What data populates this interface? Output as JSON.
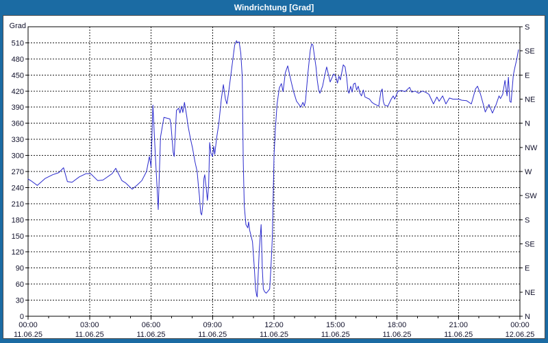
{
  "window": {
    "title": "Windrichtung [Grad]"
  },
  "colors": {
    "frame_blue": "#1b6ba3",
    "title_text": "#ffffff",
    "panel_bg": "#ffffff",
    "axis": "#000000",
    "grid": "#1a1a1a",
    "tick_text": "#10102a",
    "series_line": "#2828cc"
  },
  "chart_data": {
    "type": "line",
    "title": "Windrichtung [Grad]",
    "grid": true,
    "y_left": {
      "label": "Grad",
      "min": 0,
      "max": 540,
      "tick_step": 30,
      "ticks": [
        0,
        30,
        60,
        90,
        120,
        150,
        180,
        210,
        240,
        270,
        300,
        330,
        360,
        390,
        420,
        450,
        480,
        510
      ]
    },
    "y_right": {
      "labels": [
        {
          "value": 540,
          "label": "S"
        },
        {
          "value": 495,
          "label": "SE"
        },
        {
          "value": 450,
          "label": "E"
        },
        {
          "value": 405,
          "label": "NE"
        },
        {
          "value": 360,
          "label": "N"
        },
        {
          "value": 315,
          "label": "NW"
        },
        {
          "value": 270,
          "label": "W"
        },
        {
          "value": 225,
          "label": "SW"
        },
        {
          "value": 180,
          "label": "S"
        },
        {
          "value": 135,
          "label": "SE"
        },
        {
          "value": 90,
          "label": "E"
        },
        {
          "value": 45,
          "label": "NE"
        },
        {
          "value": 0,
          "label": "N"
        }
      ]
    },
    "x": {
      "min_hour": 0,
      "max_hour": 24,
      "minor_tick_hours": 1,
      "ticks": [
        {
          "hour": 0,
          "time": "00:00",
          "date": "11.06.25"
        },
        {
          "hour": 3,
          "time": "03:00",
          "date": "11.06.25"
        },
        {
          "hour": 6,
          "time": "06:00",
          "date": "11.06.25"
        },
        {
          "hour": 9,
          "time": "09:00",
          "date": "11.06.25"
        },
        {
          "hour": 12,
          "time": "12:00",
          "date": "11.06.25"
        },
        {
          "hour": 15,
          "time": "15:00",
          "date": "11.06.25"
        },
        {
          "hour": 18,
          "time": "18:00",
          "date": "11.06.25"
        },
        {
          "hour": 21,
          "time": "21:00",
          "date": "11.06.25"
        },
        {
          "hour": 24,
          "time": "00:00",
          "date": "12.06.25"
        }
      ]
    },
    "series": [
      {
        "name": "Windrichtung",
        "unit": "Grad",
        "points": [
          [
            0.0,
            256
          ],
          [
            0.17,
            252
          ],
          [
            0.45,
            244
          ],
          [
            0.83,
            257
          ],
          [
            1.2,
            264
          ],
          [
            1.5,
            268
          ],
          [
            1.73,
            277
          ],
          [
            1.92,
            251
          ],
          [
            2.15,
            250
          ],
          [
            2.5,
            260
          ],
          [
            2.83,
            266
          ],
          [
            3.05,
            266
          ],
          [
            3.4,
            253
          ],
          [
            3.65,
            254
          ],
          [
            4.1,
            266
          ],
          [
            4.28,
            276
          ],
          [
            4.58,
            253
          ],
          [
            4.75,
            249
          ],
          [
            5.08,
            237
          ],
          [
            5.33,
            245
          ],
          [
            5.55,
            253
          ],
          [
            5.78,
            270
          ],
          [
            5.92,
            298
          ],
          [
            6.0,
            279
          ],
          [
            6.09,
            394
          ],
          [
            6.21,
            300
          ],
          [
            6.35,
            199
          ],
          [
            6.46,
            334
          ],
          [
            6.63,
            371
          ],
          [
            6.92,
            368
          ],
          [
            6.97,
            358
          ],
          [
            7.08,
            306
          ],
          [
            7.13,
            298
          ],
          [
            7.24,
            384
          ],
          [
            7.35,
            388
          ],
          [
            7.41,
            379
          ],
          [
            7.49,
            392
          ],
          [
            7.55,
            380
          ],
          [
            7.63,
            399
          ],
          [
            7.74,
            373
          ],
          [
            7.8,
            356
          ],
          [
            7.92,
            332
          ],
          [
            8.03,
            313
          ],
          [
            8.14,
            289
          ],
          [
            8.25,
            270
          ],
          [
            8.31,
            244
          ],
          [
            8.36,
            225
          ],
          [
            8.42,
            193
          ],
          [
            8.47,
            189
          ],
          [
            8.52,
            206
          ],
          [
            8.58,
            257
          ],
          [
            8.62,
            264
          ],
          [
            8.69,
            240
          ],
          [
            8.75,
            216
          ],
          [
            8.81,
            244
          ],
          [
            8.86,
            324
          ],
          [
            8.92,
            304
          ],
          [
            9.0,
            298
          ],
          [
            9.06,
            317
          ],
          [
            9.11,
            302
          ],
          [
            9.2,
            332
          ],
          [
            9.31,
            360
          ],
          [
            9.43,
            405
          ],
          [
            9.53,
            432
          ],
          [
            9.63,
            405
          ],
          [
            9.7,
            396
          ],
          [
            9.78,
            416
          ],
          [
            9.9,
            452
          ],
          [
            10.0,
            482
          ],
          [
            10.08,
            506
          ],
          [
            10.17,
            514
          ],
          [
            10.22,
            510
          ],
          [
            10.3,
            512
          ],
          [
            10.38,
            491
          ],
          [
            10.45,
            448
          ],
          [
            10.5,
            290
          ],
          [
            10.55,
            206
          ],
          [
            10.63,
            171
          ],
          [
            10.72,
            165
          ],
          [
            10.76,
            176
          ],
          [
            10.81,
            161
          ],
          [
            10.95,
            139
          ],
          [
            11.04,
            90
          ],
          [
            11.1,
            51
          ],
          [
            11.15,
            39
          ],
          [
            11.18,
            36
          ],
          [
            11.28,
            124
          ],
          [
            11.37,
            171
          ],
          [
            11.43,
            90
          ],
          [
            11.48,
            51
          ],
          [
            11.54,
            46
          ],
          [
            11.62,
            43
          ],
          [
            11.71,
            47
          ],
          [
            11.79,
            51
          ],
          [
            11.85,
            90
          ],
          [
            11.92,
            148
          ],
          [
            12.0,
            298
          ],
          [
            12.06,
            345
          ],
          [
            12.15,
            396
          ],
          [
            12.26,
            426
          ],
          [
            12.36,
            434
          ],
          [
            12.44,
            419
          ],
          [
            12.55,
            454
          ],
          [
            12.67,
            467
          ],
          [
            12.83,
            439
          ],
          [
            12.95,
            420
          ],
          [
            13.1,
            401
          ],
          [
            13.2,
            396
          ],
          [
            13.31,
            390
          ],
          [
            13.41,
            399
          ],
          [
            13.48,
            392
          ],
          [
            13.54,
            403
          ],
          [
            13.65,
            452
          ],
          [
            13.77,
            497
          ],
          [
            13.84,
            508
          ],
          [
            13.9,
            506
          ],
          [
            13.98,
            484
          ],
          [
            14.05,
            465
          ],
          [
            14.11,
            441
          ],
          [
            14.18,
            422
          ],
          [
            14.24,
            416
          ],
          [
            14.37,
            429
          ],
          [
            14.48,
            450
          ],
          [
            14.57,
            465
          ],
          [
            14.74,
            437
          ],
          [
            14.91,
            452
          ],
          [
            15.0,
            448
          ],
          [
            15.1,
            435
          ],
          [
            15.17,
            448
          ],
          [
            15.24,
            441
          ],
          [
            15.38,
            469
          ],
          [
            15.47,
            465
          ],
          [
            15.55,
            444
          ],
          [
            15.61,
            420
          ],
          [
            15.66,
            416
          ],
          [
            15.74,
            429
          ],
          [
            15.81,
            418
          ],
          [
            15.88,
            433
          ],
          [
            15.96,
            435
          ],
          [
            16.03,
            422
          ],
          [
            16.11,
            429
          ],
          [
            16.19,
            416
          ],
          [
            16.27,
            411
          ],
          [
            16.36,
            422
          ],
          [
            16.44,
            409
          ],
          [
            16.55,
            407
          ],
          [
            16.66,
            405
          ],
          [
            16.78,
            399
          ],
          [
            16.89,
            396
          ],
          [
            17.0,
            394
          ],
          [
            17.11,
            392
          ],
          [
            17.22,
            420
          ],
          [
            17.28,
            424
          ],
          [
            17.33,
            401
          ],
          [
            17.39,
            394
          ],
          [
            17.56,
            392
          ],
          [
            17.72,
            405
          ],
          [
            17.82,
            411
          ],
          [
            17.89,
            405
          ],
          [
            18.05,
            420
          ],
          [
            18.22,
            421
          ],
          [
            18.39,
            419
          ],
          [
            18.62,
            427
          ],
          [
            18.72,
            418
          ],
          [
            18.89,
            420
          ],
          [
            19.06,
            416
          ],
          [
            19.23,
            420
          ],
          [
            19.39,
            418
          ],
          [
            19.56,
            414
          ],
          [
            19.78,
            396
          ],
          [
            19.95,
            409
          ],
          [
            20.06,
            401
          ],
          [
            20.23,
            411
          ],
          [
            20.39,
            396
          ],
          [
            20.56,
            407
          ],
          [
            20.73,
            405
          ],
          [
            21.0,
            405
          ],
          [
            21.17,
            403
          ],
          [
            21.4,
            402
          ],
          [
            21.63,
            396
          ],
          [
            21.83,
            424
          ],
          [
            21.93,
            429
          ],
          [
            22.07,
            415
          ],
          [
            22.24,
            392
          ],
          [
            22.31,
            381
          ],
          [
            22.49,
            395
          ],
          [
            22.66,
            379
          ],
          [
            22.83,
            394
          ],
          [
            22.98,
            411
          ],
          [
            23.05,
            406
          ],
          [
            23.16,
            414
          ],
          [
            23.27,
            440
          ],
          [
            23.37,
            411
          ],
          [
            23.44,
            446
          ],
          [
            23.51,
            401
          ],
          [
            23.57,
            399
          ],
          [
            23.68,
            450
          ],
          [
            23.76,
            465
          ],
          [
            23.85,
            480
          ],
          [
            23.93,
            497
          ]
        ]
      }
    ]
  }
}
